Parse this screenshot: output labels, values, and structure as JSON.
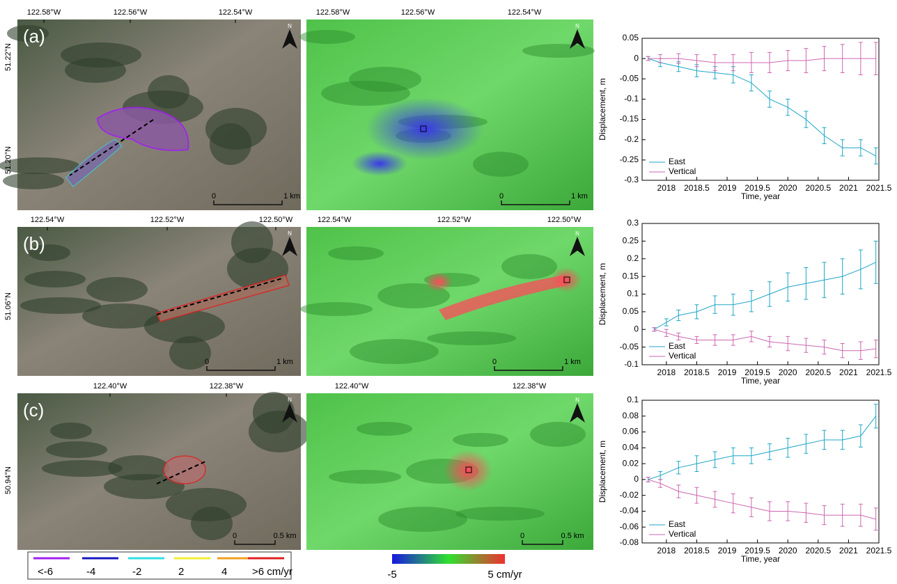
{
  "chart_data": [
    {
      "type": "line",
      "y_label": "Displacement, m",
      "x_label": "Time, year",
      "xlim": [
        2017.6,
        2021.5
      ],
      "xticks": [
        2018,
        2018.5,
        2019,
        2019.5,
        2020,
        2020.5,
        2021,
        2021.5
      ],
      "ylim": [
        -0.3,
        0.05
      ],
      "yticks": [
        -0.3,
        -0.25,
        -0.2,
        -0.15,
        -0.1,
        -0.05,
        0,
        0.05
      ],
      "x": [
        2017.7,
        2017.9,
        2018.2,
        2018.5,
        2018.8,
        2019.1,
        2019.4,
        2019.7,
        2020.0,
        2020.3,
        2020.6,
        2020.9,
        2021.2,
        2021.45
      ],
      "series": [
        {
          "name": "East",
          "color": "#1ea5c8",
          "values": [
            0,
            -0.01,
            -0.02,
            -0.03,
            -0.035,
            -0.04,
            -0.06,
            -0.1,
            -0.12,
            -0.15,
            -0.19,
            -0.22,
            -0.22,
            -0.24
          ],
          "errors": [
            0.005,
            0.01,
            0.012,
            0.015,
            0.015,
            0.02,
            0.02,
            0.02,
            0.02,
            0.02,
            0.02,
            0.02,
            0.02,
            0.02
          ]
        },
        {
          "name": "Vertical",
          "color": "#cc66b0",
          "values": [
            0,
            0,
            0,
            -0.005,
            -0.01,
            -0.01,
            -0.01,
            -0.01,
            -0.005,
            -0.005,
            0,
            0,
            0,
            0
          ],
          "errors": [
            0.005,
            0.01,
            0.012,
            0.015,
            0.02,
            0.02,
            0.025,
            0.025,
            0.025,
            0.03,
            0.03,
            0.035,
            0.04,
            0.04
          ]
        }
      ]
    },
    {
      "type": "line",
      "y_label": "Displacement, m",
      "x_label": "Time, year",
      "xlim": [
        2017.6,
        2021.5
      ],
      "xticks": [
        2018,
        2018.5,
        2019,
        2019.5,
        2020,
        2020.5,
        2021,
        2021.5
      ],
      "ylim": [
        -0.1,
        0.3
      ],
      "yticks": [
        -0.1,
        -0.05,
        0,
        0.05,
        0.1,
        0.15,
        0.2,
        0.25,
        0.3
      ],
      "x": [
        2017.8,
        2018.0,
        2018.2,
        2018.5,
        2018.8,
        2019.1,
        2019.4,
        2019.7,
        2020.0,
        2020.3,
        2020.6,
        2020.9,
        2021.2,
        2021.45
      ],
      "series": [
        {
          "name": "East",
          "color": "#1ea5c8",
          "values": [
            0,
            0.02,
            0.04,
            0.05,
            0.07,
            0.07,
            0.08,
            0.1,
            0.12,
            0.13,
            0.14,
            0.15,
            0.17,
            0.19
          ],
          "errors": [
            0.005,
            0.01,
            0.015,
            0.02,
            0.025,
            0.03,
            0.03,
            0.035,
            0.04,
            0.045,
            0.05,
            0.05,
            0.055,
            0.06
          ]
        },
        {
          "name": "Vertical",
          "color": "#cc66b0",
          "values": [
            0,
            -0.01,
            -0.02,
            -0.03,
            -0.03,
            -0.03,
            -0.02,
            -0.035,
            -0.04,
            -0.045,
            -0.05,
            -0.06,
            -0.06,
            -0.055
          ],
          "errors": [
            0.005,
            0.01,
            0.01,
            0.01,
            0.015,
            0.015,
            0.015,
            0.015,
            0.02,
            0.02,
            0.02,
            0.02,
            0.025,
            0.025
          ]
        }
      ]
    },
    {
      "type": "line",
      "y_label": "Displacement, m",
      "x_label": "Time, year",
      "xlim": [
        2017.6,
        2021.5
      ],
      "xticks": [
        2018,
        2018.5,
        2019,
        2019.5,
        2020,
        2020.5,
        2021,
        2021.5
      ],
      "ylim": [
        -0.08,
        0.1
      ],
      "yticks": [
        -0.08,
        -0.06,
        -0.04,
        -0.02,
        0,
        0.02,
        0.04,
        0.06,
        0.08,
        0.1
      ],
      "x": [
        2017.7,
        2017.9,
        2018.2,
        2018.5,
        2018.8,
        2019.1,
        2019.4,
        2019.7,
        2020.0,
        2020.3,
        2020.6,
        2020.9,
        2021.2,
        2021.45
      ],
      "series": [
        {
          "name": "East",
          "color": "#1ea5c8",
          "values": [
            0,
            0.005,
            0.015,
            0.02,
            0.025,
            0.03,
            0.03,
            0.035,
            0.04,
            0.045,
            0.05,
            0.05,
            0.055,
            0.08
          ],
          "errors": [
            0.003,
            0.005,
            0.008,
            0.01,
            0.01,
            0.01,
            0.01,
            0.01,
            0.012,
            0.012,
            0.012,
            0.012,
            0.014,
            0.015
          ]
        },
        {
          "name": "Vertical",
          "color": "#cc66b0",
          "values": [
            0,
            -0.005,
            -0.015,
            -0.02,
            -0.025,
            -0.03,
            -0.035,
            -0.04,
            -0.04,
            -0.042,
            -0.045,
            -0.045,
            -0.045,
            -0.05
          ],
          "errors": [
            0.003,
            0.005,
            0.008,
            0.01,
            0.01,
            0.012,
            0.012,
            0.012,
            0.012,
            0.012,
            0.012,
            0.014,
            0.014,
            0.014
          ]
        }
      ]
    }
  ],
  "maps": [
    {
      "panel": "(a)",
      "left": {
        "lon": [
          "122.58°W",
          "122.56°W",
          "122.54°W"
        ],
        "lat": [
          "51.22°N",
          "51.20°N"
        ],
        "scale": [
          "0",
          "1 km"
        ],
        "north": "N"
      },
      "middle": {
        "lon": [
          "122.58°W",
          "122.56°W",
          "122.54°W"
        ],
        "scale": [
          "0",
          "1 km"
        ],
        "north": "N"
      }
    },
    {
      "panel": "(b)",
      "left": {
        "lon": [
          "122.54°W",
          "122.52°W",
          "122.50°W"
        ],
        "lat": [
          "51.06°N"
        ],
        "scale": [
          "0",
          "1 km"
        ],
        "north": "N"
      },
      "middle": {
        "lon": [
          "122.54°W",
          "122.52°W",
          "122.50°W"
        ],
        "scale": [
          "0",
          "1 km"
        ],
        "north": "N"
      }
    },
    {
      "panel": "(c)",
      "left": {
        "lon": [
          "122.40°W",
          "122.38°W"
        ],
        "lat": [
          "50.94°N"
        ],
        "scale": [
          "0",
          "0.5 km"
        ],
        "north": "N"
      },
      "middle": {
        "lon": [
          "122.40°W",
          "122.38°W"
        ],
        "scale": [
          "0",
          "0.5 km"
        ],
        "north": "N"
      }
    }
  ],
  "legend": {
    "items": [
      {
        "label": "<-6",
        "color": "#a020f0"
      },
      {
        "label": "-4",
        "color": "#1818c0"
      },
      {
        "label": "-2",
        "color": "#30e0e0"
      },
      {
        "label": "2",
        "color": "#f0f030"
      },
      {
        "label": "4",
        "color": "#f0a020"
      },
      {
        "label": ">6 cm/yr",
        "color": "#e02020"
      }
    ]
  },
  "colorbar": {
    "min_label": "-5",
    "max_label": "5 cm/yr"
  }
}
